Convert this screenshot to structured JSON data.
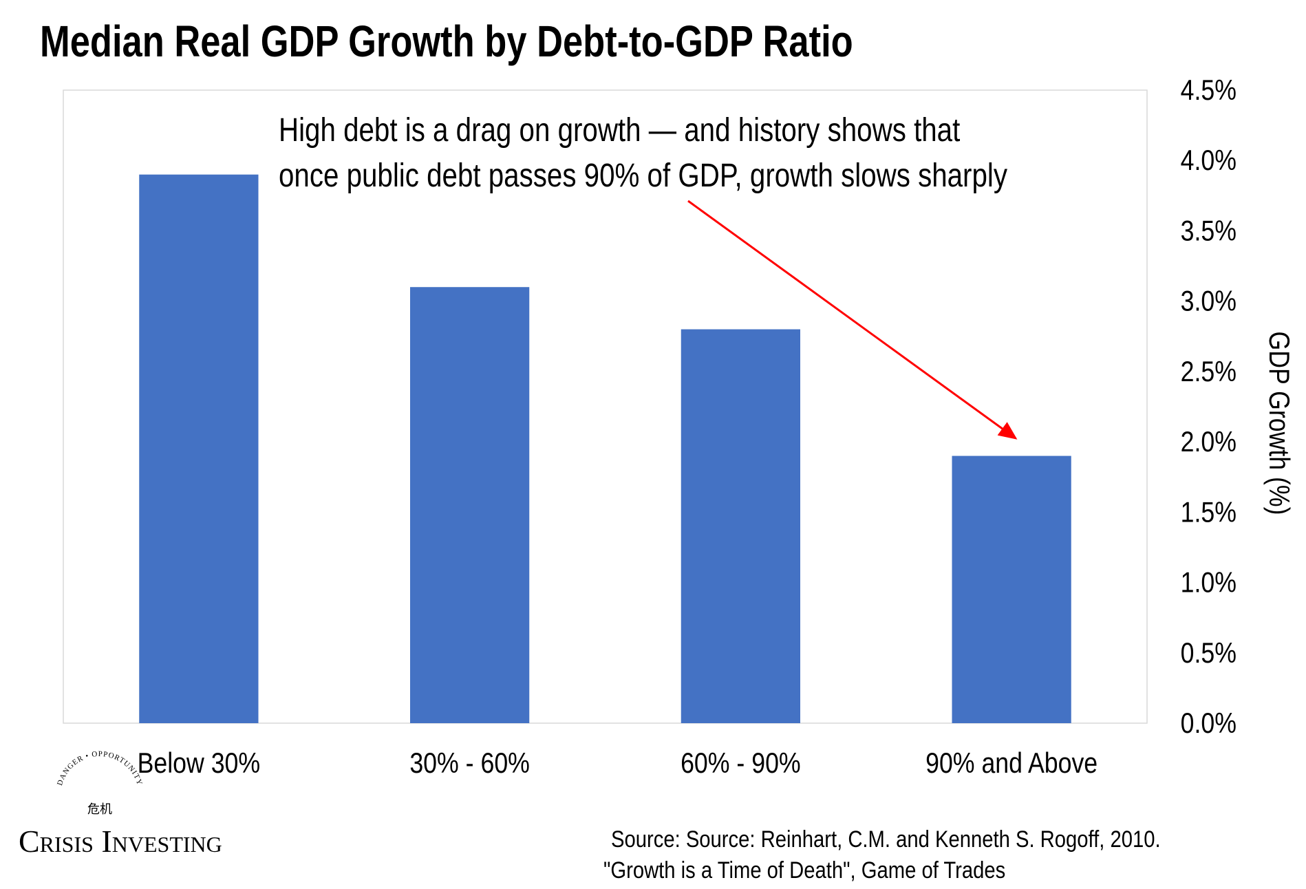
{
  "chart_data": {
    "type": "bar",
    "title": "Median Real GDP Growth by Debt-to-GDP Ratio",
    "categories": [
      "Below 30%",
      "30% - 60%",
      "60% - 90%",
      "90% and Above"
    ],
    "values": [
      3.9,
      3.1,
      2.8,
      1.9
    ],
    "xlabel": "",
    "ylabel": "GDP Growth (%)",
    "ylim": [
      0,
      4.5
    ],
    "yticks": [
      "0.0%",
      "0.5%",
      "1.0%",
      "1.5%",
      "2.0%",
      "2.5%",
      "3.0%",
      "3.5%",
      "4.0%",
      "4.5%"
    ],
    "y_axis_side": "right",
    "grid": false,
    "bar_color": "#4472C4",
    "annotation": {
      "lines": [
        "High debt is a drag on growth — and history shows that",
        "once public debt passes 90% of GDP, growth slows sharply"
      ],
      "arrow_target_category": "90% and Above",
      "arrow_color": "#FF0000"
    }
  },
  "logo": {
    "name": "CRISIS INVESTING",
    "arc_text": "DANGER • OPPORTUNITY",
    "glyphs": "危机"
  },
  "source": {
    "line1": "Source: Source: Reinhart, C.M. and Kenneth S. Rogoff, 2010.",
    "line2": "\"Growth is a Time of Death\", Game of Trades"
  }
}
